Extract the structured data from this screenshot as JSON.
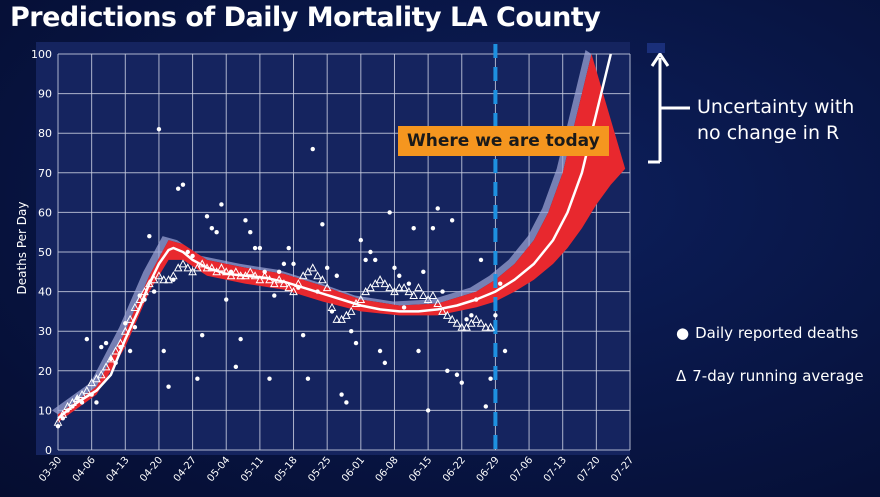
{
  "title": "Predictions of Daily Mortality LA County",
  "annotations": {
    "today": "Where we are today",
    "uncertainty": "Uncertainty with no change in R"
  },
  "legend": {
    "daily": "Daily reported deaths",
    "average": "7-day running average",
    "daily_marker": "●",
    "average_marker": "Δ"
  },
  "colors": {
    "band": "#e8282e",
    "median": "#ffffff",
    "today_line": "#1e90e0",
    "plot_bg": "#15245f",
    "grid": "#c8cde0",
    "outer_band": "#9fa8d8",
    "today_label_bg": "#f5961f"
  },
  "chart_data": {
    "type": "scatter",
    "title": "",
    "xlabel": "",
    "ylabel": "Deaths Per Day",
    "ylim": [
      0,
      100
    ],
    "xlim": [
      "2020-03-30",
      "2020-07-27"
    ],
    "x_ticks": [
      "03-30",
      "04-06",
      "04-13",
      "04-20",
      "04-27",
      "05-04",
      "05-11",
      "05-18",
      "05-25",
      "06-01",
      "06-08",
      "06-15",
      "06-22",
      "06-29",
      "07-06",
      "07-13",
      "07-20",
      "07-27"
    ],
    "y_ticks": [
      0,
      10,
      20,
      30,
      40,
      50,
      60,
      70,
      80,
      90,
      100
    ],
    "grid": true,
    "today": "2020-06-29",
    "series": [
      {
        "name": "Daily reported deaths",
        "kind": "points",
        "points": [
          [
            "2020-03-30",
            6
          ],
          [
            "2020-03-31",
            8
          ],
          [
            "2020-04-01",
            10
          ],
          [
            "2020-04-02",
            11
          ],
          [
            "2020-04-03",
            13
          ],
          [
            "2020-04-04",
            12
          ],
          [
            "2020-04-05",
            28
          ],
          [
            "2020-04-06",
            14
          ],
          [
            "2020-04-07",
            12
          ],
          [
            "2020-04-08",
            26
          ],
          [
            "2020-04-09",
            27
          ],
          [
            "2020-04-10",
            23
          ],
          [
            "2020-04-11",
            22
          ],
          [
            "2020-04-12",
            26
          ],
          [
            "2020-04-13",
            32
          ],
          [
            "2020-04-14",
            25
          ],
          [
            "2020-04-15",
            31
          ],
          [
            "2020-04-16",
            39
          ],
          [
            "2020-04-17",
            38
          ],
          [
            "2020-04-18",
            54
          ],
          [
            "2020-04-19",
            40
          ],
          [
            "2020-04-20",
            81
          ],
          [
            "2020-04-21",
            25
          ],
          [
            "2020-04-22",
            16
          ],
          [
            "2020-04-23",
            43
          ],
          [
            "2020-04-24",
            66
          ],
          [
            "2020-04-25",
            67
          ],
          [
            "2020-04-26",
            50
          ],
          [
            "2020-04-27",
            49
          ],
          [
            "2020-04-28",
            18
          ],
          [
            "2020-04-29",
            29
          ],
          [
            "2020-04-30",
            59
          ],
          [
            "2020-05-01",
            56
          ],
          [
            "2020-05-02",
            55
          ],
          [
            "2020-05-03",
            62
          ],
          [
            "2020-05-04",
            38
          ],
          [
            "2020-05-05",
            45
          ],
          [
            "2020-05-06",
            21
          ],
          [
            "2020-05-07",
            28
          ],
          [
            "2020-05-08",
            58
          ],
          [
            "2020-05-09",
            55
          ],
          [
            "2020-05-10",
            51
          ],
          [
            "2020-05-11",
            51
          ],
          [
            "2020-05-12",
            45
          ],
          [
            "2020-05-13",
            18
          ],
          [
            "2020-05-14",
            39
          ],
          [
            "2020-05-15",
            45
          ],
          [
            "2020-05-16",
            47
          ],
          [
            "2020-05-17",
            51
          ],
          [
            "2020-05-18",
            47
          ],
          [
            "2020-05-19",
            41
          ],
          [
            "2020-05-20",
            29
          ],
          [
            "2020-05-21",
            18
          ],
          [
            "2020-05-22",
            76
          ],
          [
            "2020-05-23",
            40
          ],
          [
            "2020-05-24",
            57
          ],
          [
            "2020-05-25",
            46
          ],
          [
            "2020-05-26",
            35
          ],
          [
            "2020-05-27",
            44
          ],
          [
            "2020-05-28",
            14
          ],
          [
            "2020-05-29",
            12
          ],
          [
            "2020-05-30",
            30
          ],
          [
            "2020-05-31",
            27
          ],
          [
            "2020-06-01",
            53
          ],
          [
            "2020-06-02",
            48
          ],
          [
            "2020-06-03",
            50
          ],
          [
            "2020-06-04",
            48
          ],
          [
            "2020-06-05",
            25
          ],
          [
            "2020-06-06",
            22
          ],
          [
            "2020-06-07",
            60
          ],
          [
            "2020-06-08",
            46
          ],
          [
            "2020-06-09",
            44
          ],
          [
            "2020-06-10",
            36
          ],
          [
            "2020-06-11",
            42
          ],
          [
            "2020-06-12",
            56
          ],
          [
            "2020-06-13",
            25
          ],
          [
            "2020-06-14",
            45
          ],
          [
            "2020-06-15",
            10
          ],
          [
            "2020-06-16",
            56
          ],
          [
            "2020-06-17",
            61
          ],
          [
            "2020-06-18",
            40
          ],
          [
            "2020-06-19",
            20
          ],
          [
            "2020-06-20",
            58
          ],
          [
            "2020-06-21",
            19
          ],
          [
            "2020-06-22",
            17
          ],
          [
            "2020-06-23",
            33
          ],
          [
            "2020-06-24",
            34
          ],
          [
            "2020-06-25",
            38
          ],
          [
            "2020-06-26",
            48
          ],
          [
            "2020-06-27",
            11
          ],
          [
            "2020-06-28",
            18
          ],
          [
            "2020-06-29",
            34
          ],
          [
            "2020-06-30",
            42
          ],
          [
            "2020-07-01",
            25
          ]
        ]
      },
      {
        "name": "7-day running average",
        "kind": "triangles",
        "points": [
          [
            "2020-03-30",
            7
          ],
          [
            "2020-03-31",
            9
          ],
          [
            "2020-04-01",
            11
          ],
          [
            "2020-04-02",
            12
          ],
          [
            "2020-04-03",
            13
          ],
          [
            "2020-04-04",
            14
          ],
          [
            "2020-04-05",
            15
          ],
          [
            "2020-04-06",
            17
          ],
          [
            "2020-04-07",
            18
          ],
          [
            "2020-04-08",
            19
          ],
          [
            "2020-04-09",
            21
          ],
          [
            "2020-04-10",
            23
          ],
          [
            "2020-04-11",
            25
          ],
          [
            "2020-04-12",
            27
          ],
          [
            "2020-04-13",
            30
          ],
          [
            "2020-04-14",
            33
          ],
          [
            "2020-04-15",
            36
          ],
          [
            "2020-04-16",
            38
          ],
          [
            "2020-04-17",
            40
          ],
          [
            "2020-04-18",
            42
          ],
          [
            "2020-04-19",
            43
          ],
          [
            "2020-04-20",
            44
          ],
          [
            "2020-04-21",
            43
          ],
          [
            "2020-04-22",
            43
          ],
          [
            "2020-04-23",
            44
          ],
          [
            "2020-04-24",
            46
          ],
          [
            "2020-04-25",
            47
          ],
          [
            "2020-04-26",
            46
          ],
          [
            "2020-04-27",
            45
          ],
          [
            "2020-04-28",
            46
          ],
          [
            "2020-04-29",
            47
          ],
          [
            "2020-04-30",
            46
          ],
          [
            "2020-05-01",
            46
          ],
          [
            "2020-05-02",
            45
          ],
          [
            "2020-05-03",
            46
          ],
          [
            "2020-05-04",
            45
          ],
          [
            "2020-05-05",
            44
          ],
          [
            "2020-05-06",
            45
          ],
          [
            "2020-05-07",
            44
          ],
          [
            "2020-05-08",
            44
          ],
          [
            "2020-05-09",
            45
          ],
          [
            "2020-05-10",
            44
          ],
          [
            "2020-05-11",
            43
          ],
          [
            "2020-05-12",
            44
          ],
          [
            "2020-05-13",
            43
          ],
          [
            "2020-05-14",
            42
          ],
          [
            "2020-05-15",
            43
          ],
          [
            "2020-05-16",
            42
          ],
          [
            "2020-05-17",
            41
          ],
          [
            "2020-05-18",
            40
          ],
          [
            "2020-05-19",
            42
          ],
          [
            "2020-05-20",
            44
          ],
          [
            "2020-05-21",
            45
          ],
          [
            "2020-05-22",
            46
          ],
          [
            "2020-05-23",
            44
          ],
          [
            "2020-05-24",
            43
          ],
          [
            "2020-05-25",
            41
          ],
          [
            "2020-05-26",
            36
          ],
          [
            "2020-05-27",
            33
          ],
          [
            "2020-05-28",
            33
          ],
          [
            "2020-05-29",
            34
          ],
          [
            "2020-05-30",
            35
          ],
          [
            "2020-05-31",
            37
          ],
          [
            "2020-06-01",
            38
          ],
          [
            "2020-06-02",
            40
          ],
          [
            "2020-06-03",
            41
          ],
          [
            "2020-06-04",
            42
          ],
          [
            "2020-06-05",
            43
          ],
          [
            "2020-06-06",
            42
          ],
          [
            "2020-06-07",
            41
          ],
          [
            "2020-06-08",
            40
          ],
          [
            "2020-06-09",
            41
          ],
          [
            "2020-06-10",
            41
          ],
          [
            "2020-06-11",
            40
          ],
          [
            "2020-06-12",
            39
          ],
          [
            "2020-06-13",
            41
          ],
          [
            "2020-06-14",
            39
          ],
          [
            "2020-06-15",
            38
          ],
          [
            "2020-06-16",
            39
          ],
          [
            "2020-06-17",
            37
          ],
          [
            "2020-06-18",
            35
          ],
          [
            "2020-06-19",
            34
          ],
          [
            "2020-06-20",
            33
          ],
          [
            "2020-06-21",
            32
          ],
          [
            "2020-06-22",
            31
          ],
          [
            "2020-06-23",
            31
          ],
          [
            "2020-06-24",
            32
          ],
          [
            "2020-06-25",
            33
          ],
          [
            "2020-06-26",
            32
          ],
          [
            "2020-06-27",
            31
          ],
          [
            "2020-06-28",
            31
          ]
        ]
      },
      {
        "name": "Prediction median",
        "kind": "line",
        "points": [
          [
            "2020-03-30",
            8
          ],
          [
            "2020-04-03",
            12
          ],
          [
            "2020-04-07",
            15
          ],
          [
            "2020-04-10",
            19
          ],
          [
            "2020-04-13",
            28
          ],
          [
            "2020-04-16",
            36
          ],
          [
            "2020-04-18",
            42
          ],
          [
            "2020-04-20",
            47
          ],
          [
            "2020-04-22",
            50.5
          ],
          [
            "2020-04-23",
            51
          ],
          [
            "2020-04-25",
            50
          ],
          [
            "2020-04-27",
            48
          ],
          [
            "2020-04-30",
            46
          ],
          [
            "2020-05-04",
            44.5
          ],
          [
            "2020-05-08",
            44
          ],
          [
            "2020-05-12",
            43.5
          ],
          [
            "2020-05-16",
            42.5
          ],
          [
            "2020-05-20",
            41
          ],
          [
            "2020-05-24",
            39.5
          ],
          [
            "2020-05-28",
            38
          ],
          [
            "2020-06-01",
            36.5
          ],
          [
            "2020-06-05",
            35.5
          ],
          [
            "2020-06-09",
            35
          ],
          [
            "2020-06-13",
            35
          ],
          [
            "2020-06-17",
            35.5
          ],
          [
            "2020-06-21",
            36.5
          ],
          [
            "2020-06-25",
            38
          ],
          [
            "2020-06-29",
            40
          ],
          [
            "2020-07-03",
            43
          ],
          [
            "2020-07-07",
            47
          ],
          [
            "2020-07-11",
            53
          ],
          [
            "2020-07-14",
            60
          ],
          [
            "2020-07-17",
            70
          ],
          [
            "2020-07-19",
            80
          ],
          [
            "2020-07-21",
            90
          ],
          [
            "2020-07-23",
            100
          ]
        ]
      },
      {
        "name": "Uncertainty band",
        "kind": "band",
        "lower": [
          [
            "2020-03-30",
            7
          ],
          [
            "2020-04-07",
            14
          ],
          [
            "2020-04-13",
            26
          ],
          [
            "2020-04-18",
            40
          ],
          [
            "2020-04-22",
            48
          ],
          [
            "2020-04-25",
            48
          ],
          [
            "2020-04-30",
            44
          ],
          [
            "2020-05-08",
            42
          ],
          [
            "2020-05-16",
            40.5
          ],
          [
            "2020-05-24",
            37.5
          ],
          [
            "2020-06-01",
            35
          ],
          [
            "2020-06-09",
            34
          ],
          [
            "2020-06-17",
            34
          ],
          [
            "2020-06-25",
            36
          ],
          [
            "2020-06-29",
            37.5
          ],
          [
            "2020-07-03",
            40
          ],
          [
            "2020-07-07",
            43
          ],
          [
            "2020-07-11",
            47
          ],
          [
            "2020-07-14",
            51
          ],
          [
            "2020-07-17",
            56
          ],
          [
            "2020-07-20",
            62
          ],
          [
            "2020-07-23",
            67
          ],
          [
            "2020-07-26",
            71
          ]
        ],
        "upper": [
          [
            "2020-03-30",
            9
          ],
          [
            "2020-04-07",
            16
          ],
          [
            "2020-04-13",
            30
          ],
          [
            "2020-04-18",
            44
          ],
          [
            "2020-04-22",
            53
          ],
          [
            "2020-04-25",
            52
          ],
          [
            "2020-04-30",
            48
          ],
          [
            "2020-05-08",
            46
          ],
          [
            "2020-05-16",
            44.5
          ],
          [
            "2020-05-24",
            41.5
          ],
          [
            "2020-06-01",
            38
          ],
          [
            "2020-06-09",
            36.5
          ],
          [
            "2020-06-17",
            37
          ],
          [
            "2020-06-25",
            40
          ],
          [
            "2020-06-29",
            43
          ],
          [
            "2020-07-03",
            47
          ],
          [
            "2020-07-07",
            53
          ],
          [
            "2020-07-10",
            60
          ],
          [
            "2020-07-13",
            70
          ],
          [
            "2020-07-15",
            80
          ],
          [
            "2020-07-17",
            90
          ],
          [
            "2020-07-19",
            100
          ]
        ]
      }
    ]
  }
}
